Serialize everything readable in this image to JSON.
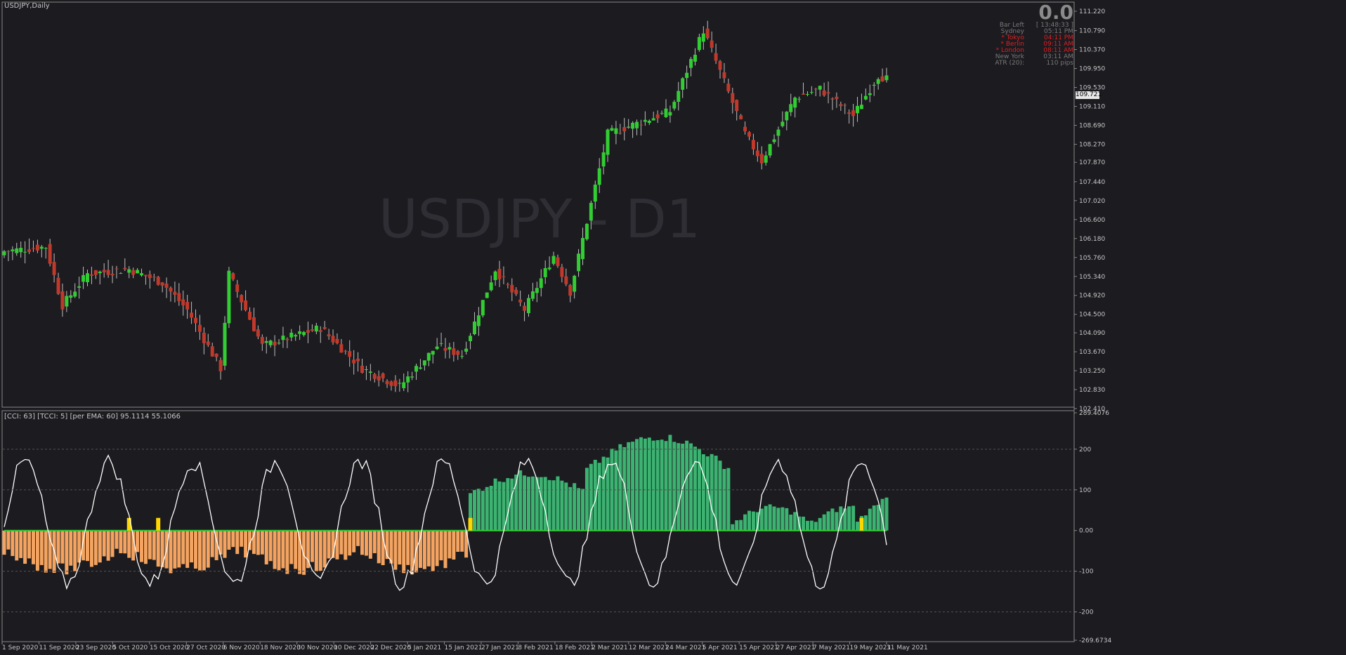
{
  "main": {
    "title": "USDJPY,Daily",
    "watermark": "USDJPY - D1",
    "price_axis": [
      "111.220",
      "110.790",
      "110.370",
      "109.950",
      "109.530",
      "109.110",
      "108.690",
      "108.270",
      "107.870",
      "107.440",
      "107.020",
      "106.600",
      "106.180",
      "105.760",
      "105.340",
      "104.920",
      "104.500",
      "104.090",
      "103.670",
      "103.250",
      "102.830",
      "102.410"
    ],
    "axis_range": [
      102.41,
      111.22
    ],
    "current_price": "109.721",
    "current_price_value": 109.721
  },
  "info_panel": {
    "big_value": "0.0",
    "rows": [
      {
        "label": "Bar Left",
        "value": "[ 13:48:33 ]",
        "color": "#7a7a7a"
      },
      {
        "label": "Sydney",
        "value": "05:11 PM",
        "color": "#7a7a7a"
      },
      {
        "label": "* Tokyo",
        "value": "04:11 PM",
        "color": "#e02020"
      },
      {
        "label": "* Berlin",
        "value": "09:11 AM",
        "color": "#e02020"
      },
      {
        "label": "* London",
        "value": "08:11 AM",
        "color": "#e02020"
      },
      {
        "label": "New York",
        "value": "03:11 AM",
        "color": "#7a7a7a"
      },
      {
        "label": "ATR (20):",
        "value": "110 pips",
        "color": "#7a7a7a"
      }
    ]
  },
  "indicator": {
    "label": "[CCI: 63] [TCCI: 5] [per EMA: 60]  95.1114 55.1066",
    "axis": [
      "289.4076",
      "200",
      "100",
      "0.00",
      "-100",
      "-200",
      "-269.6734"
    ],
    "range": [
      -269.6734,
      289.4076
    ],
    "colors": {
      "positive": "#3cb371",
      "negative": "#f4a460",
      "signal": "#ffd700",
      "line": "#ffffff",
      "zero": "#32cd32"
    }
  },
  "time_axis": [
    "1 Sep 2020",
    "11 Sep 2020",
    "23 Sep 2020",
    "5 Oct 2020",
    "15 Oct 2020",
    "27 Oct 2020",
    "6 Nov 2020",
    "18 Nov 2020",
    "30 Nov 2020",
    "10 Dec 2020",
    "22 Dec 2020",
    "5 Jan 2021",
    "15 Jan 2021",
    "27 Jan 2021",
    "8 Feb 2021",
    "18 Feb 2021",
    "2 Mar 2021",
    "12 Mar 2021",
    "24 Mar 2021",
    "5 Apr 2021",
    "15 Apr 2021",
    "27 Apr 2021",
    "7 May 2021",
    "19 May 2021",
    "31 May 2021"
  ],
  "colors": {
    "bull": "#32cd32",
    "bear": "#c0392b",
    "wick": "#c0c0c0",
    "background": "#1b1b20",
    "grid": "#555555"
  },
  "chart_data": {
    "type": "candlestick",
    "symbol": "USDJPY",
    "timeframe": "Daily",
    "ylim": [
      102.41,
      111.22
    ],
    "close_anchors": [
      {
        "i": 0,
        "c": 105.9
      },
      {
        "i": 10,
        "c": 106.0
      },
      {
        "i": 14,
        "c": 104.7
      },
      {
        "i": 20,
        "c": 105.4
      },
      {
        "i": 30,
        "c": 105.5
      },
      {
        "i": 38,
        "c": 105.2
      },
      {
        "i": 44,
        "c": 104.6
      },
      {
        "i": 52,
        "c": 103.3
      },
      {
        "i": 54,
        "c": 105.4
      },
      {
        "i": 62,
        "c": 103.8
      },
      {
        "i": 76,
        "c": 104.2
      },
      {
        "i": 86,
        "c": 103.3
      },
      {
        "i": 95,
        "c": 102.9
      },
      {
        "i": 104,
        "c": 103.8
      },
      {
        "i": 110,
        "c": 103.6
      },
      {
        "i": 118,
        "c": 105.5
      },
      {
        "i": 125,
        "c": 104.6
      },
      {
        "i": 132,
        "c": 105.8
      },
      {
        "i": 136,
        "c": 105.0
      },
      {
        "i": 145,
        "c": 108.5
      },
      {
        "i": 160,
        "c": 109.0
      },
      {
        "i": 168,
        "c": 110.8
      },
      {
        "i": 178,
        "c": 108.5
      },
      {
        "i": 182,
        "c": 107.9
      },
      {
        "i": 190,
        "c": 109.3
      },
      {
        "i": 196,
        "c": 109.5
      },
      {
        "i": 204,
        "c": 108.9
      },
      {
        "i": 210,
        "c": 109.8
      },
      {
        "i": 212,
        "c": 109.72
      }
    ]
  }
}
